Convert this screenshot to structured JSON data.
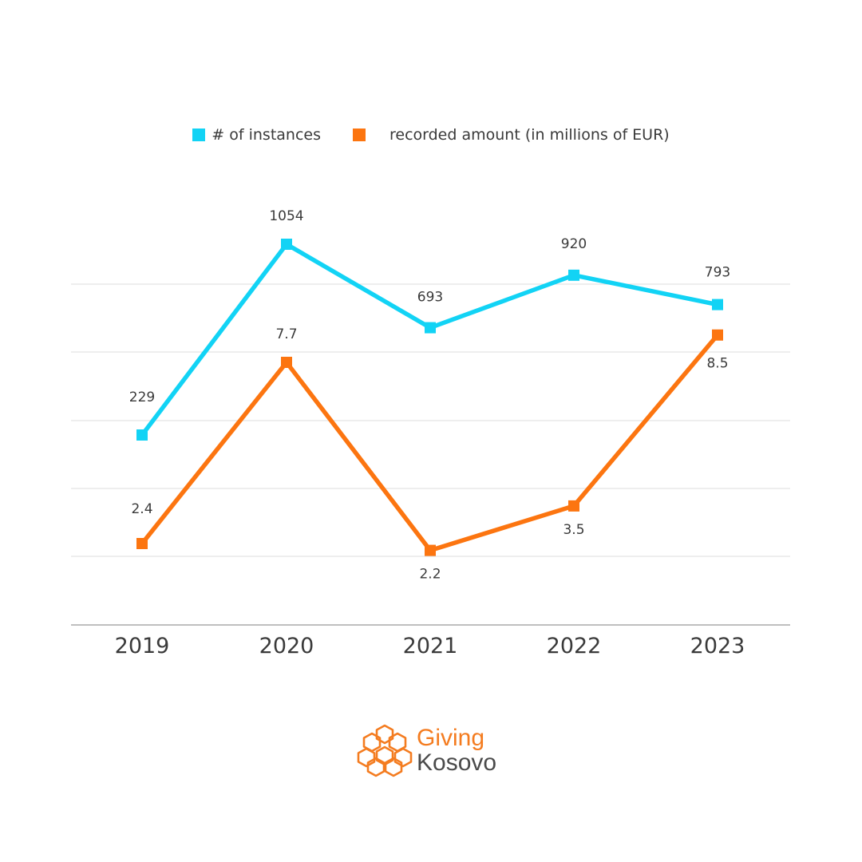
{
  "legend": {
    "instances_label": "# of instances",
    "amount_label": "recorded amount (in millions of EUR)"
  },
  "colors": {
    "instances": "#12d3f5",
    "amount": "#fc7510",
    "grid": "#dddddd",
    "axis": "#aaaaaa",
    "logo_orange": "#f47c20",
    "logo_gray": "#4a4a4a"
  },
  "logo": {
    "line1": "Giving",
    "line2": "Kosovo",
    "icon": "hexagon-cluster-icon"
  },
  "chart_data": {
    "type": "line",
    "categories": [
      "2019",
      "2020",
      "2021",
      "2022",
      "2023"
    ],
    "series": [
      {
        "name": "# of instances",
        "values": [
          229,
          1054,
          693,
          920,
          793
        ],
        "labels": [
          "229",
          "1054",
          "693",
          "920",
          "793"
        ],
        "color": "#12d3f5"
      },
      {
        "name": "recorded amount (in millions of EUR)",
        "values": [
          2.4,
          7.7,
          2.2,
          3.5,
          8.5
        ],
        "labels": [
          "2.4",
          "7.7",
          "2.2",
          "3.5",
          "8.5"
        ],
        "color": "#fc7510"
      }
    ],
    "grid": true,
    "legend_position": "top"
  }
}
